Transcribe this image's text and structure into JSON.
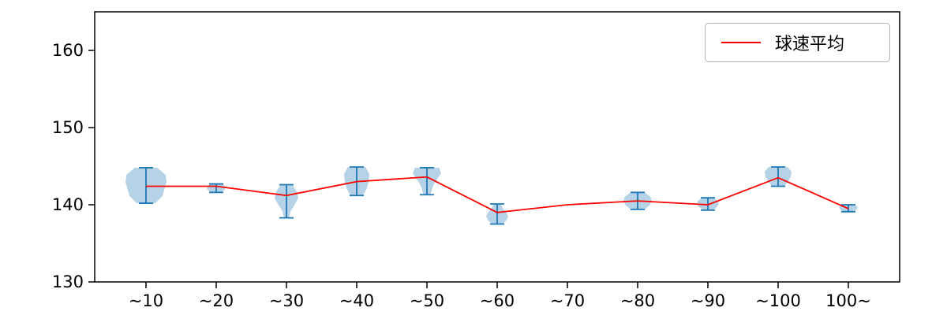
{
  "chart_data": {
    "type": "violin+line",
    "title": "",
    "xlabel": "",
    "ylabel": "",
    "categories": [
      "~10",
      "~20",
      "~30",
      "~40",
      "~50",
      "~60",
      "~70",
      "~80",
      "~90",
      "~100",
      "100~"
    ],
    "series": [
      {
        "name": "球速平均",
        "type": "line",
        "values": [
          142.4,
          142.4,
          141.2,
          143.0,
          143.6,
          139.0,
          140.0,
          140.5,
          140.0,
          143.5,
          139.5
        ]
      }
    ],
    "violins": [
      {
        "category": "~10",
        "min": 140.2,
        "max": 144.8,
        "half_width": 26,
        "profile": [
          0.55,
          0.95,
          1,
          0.9,
          0.8,
          0.45
        ]
      },
      {
        "category": "~20",
        "min": 141.6,
        "max": 142.7,
        "half_width": 12,
        "profile": [
          0.6,
          1,
          0.9,
          0.5
        ]
      },
      {
        "category": "~30",
        "min": 138.3,
        "max": 142.6,
        "half_width": 15,
        "profile": [
          0.5,
          0.85,
          1,
          0.7,
          0.35,
          0.2
        ]
      },
      {
        "category": "~40",
        "min": 141.2,
        "max": 144.9,
        "half_width": 16,
        "profile": [
          0.7,
          1,
          0.95,
          0.8,
          0.5
        ]
      },
      {
        "category": "~50",
        "min": 141.3,
        "max": 144.8,
        "half_width": 18,
        "profile": [
          0.85,
          1,
          0.75,
          0.5,
          0.35,
          0.25
        ]
      },
      {
        "category": "~60",
        "min": 137.5,
        "max": 140.1,
        "half_width": 14,
        "profile": [
          0.3,
          0.5,
          0.8,
          1,
          0.85,
          0.5
        ]
      },
      null,
      {
        "category": "~80",
        "min": 139.4,
        "max": 141.6,
        "half_width": 18,
        "profile": [
          0.5,
          0.9,
          1,
          0.85,
          0.5
        ]
      },
      {
        "category": "~90",
        "min": 139.3,
        "max": 140.9,
        "half_width": 14,
        "profile": [
          0.5,
          0.9,
          1,
          0.8,
          0.45
        ]
      },
      {
        "category": "~100",
        "min": 142.4,
        "max": 144.9,
        "half_width": 17,
        "profile": [
          0.7,
          1,
          0.95,
          0.75,
          0.45
        ]
      },
      {
        "category": "100~",
        "min": 139.1,
        "max": 140.0,
        "half_width": 12,
        "profile": [
          0.7,
          1,
          0.9,
          0.5
        ]
      }
    ],
    "ylim": [
      130,
      165
    ],
    "yticks": [
      130,
      140,
      150,
      160
    ],
    "grid": false,
    "legend": {
      "position": "upper right",
      "entries": [
        "球速平均"
      ]
    },
    "colors": {
      "mean_line": "#ff0000",
      "violin_fill": "#1f77b4",
      "violin_fill_opacity": 0.33,
      "whisker": "#1f77b4",
      "axis": "#000000",
      "tick_label": "#000000"
    }
  }
}
